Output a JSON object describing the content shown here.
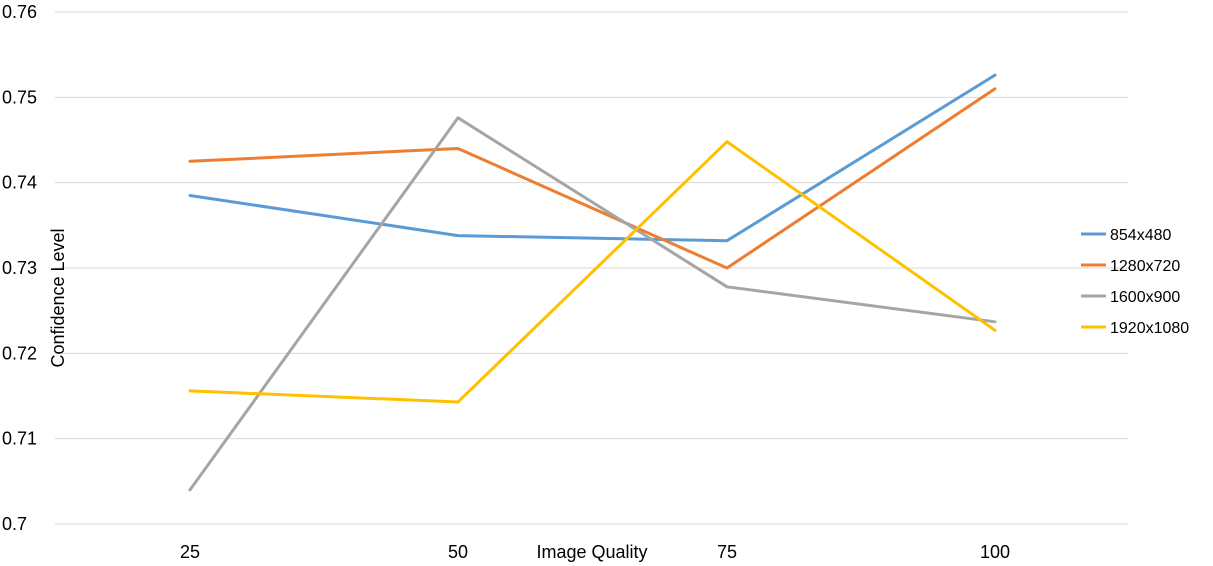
{
  "chart_data": {
    "type": "line",
    "xlabel": "Image Quality",
    "ylabel": "Confidence Level",
    "categories": [
      "25",
      "50",
      "75",
      "100"
    ],
    "ylim": [
      0.7,
      0.76
    ],
    "yticks": [
      "0.7",
      "0.71",
      "0.72",
      "0.73",
      "0.74",
      "0.75",
      "0.76"
    ],
    "grid": true,
    "legend_position": "right",
    "series": [
      {
        "name": "854x480",
        "color": "#5b9bd5",
        "values": [
          0.7385,
          0.7338,
          0.7332,
          0.7526
        ]
      },
      {
        "name": "1280x720",
        "color": "#ed7d31",
        "values": [
          0.7425,
          0.744,
          0.73,
          0.751
        ]
      },
      {
        "name": "1600x900",
        "color": "#a5a5a5",
        "values": [
          0.704,
          0.7476,
          0.7278,
          0.7237
        ]
      },
      {
        "name": "1920x1080",
        "color": "#ffc000",
        "values": [
          0.7156,
          0.7143,
          0.7448,
          0.7227
        ]
      }
    ]
  }
}
